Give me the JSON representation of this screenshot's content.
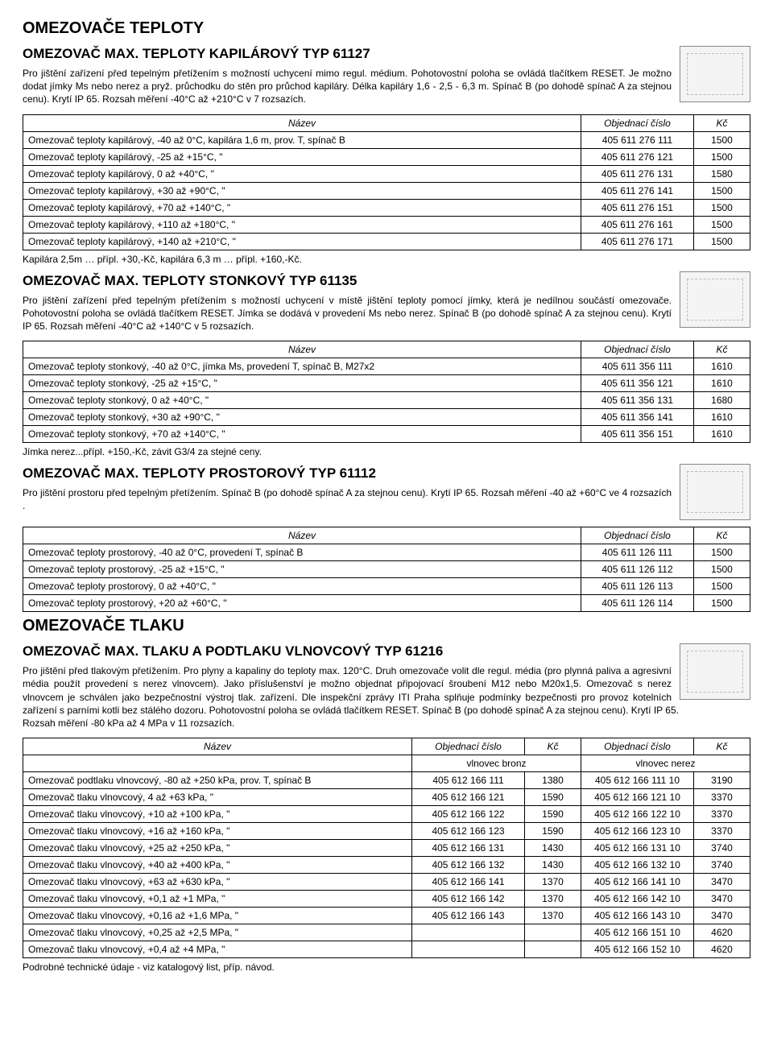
{
  "main_title": "OMEZOVAČE TEPLOTY",
  "s1": {
    "title": "OMEZOVAČ MAX. TEPLOTY KAPILÁROVÝ TYP 61127",
    "intro": "Pro jištění zařízení před tepelným přetížením s možností uchycení mimo regul. médium. Pohotovostní poloha se ovládá tlačítkem RESET. Je možno dodat jímky Ms nebo nerez a pryž. průchodku do stěn pro průchod kapiláry. Délka kapiláry 1,6 - 2,5 - 6,3 m. Spínač B (po dohodě spínač A za stejnou cenu). Krytí IP 65. Rozsah měření -40°C až +210°C v 7 rozsazích.",
    "cols": [
      "Název",
      "Objednací číslo",
      "Kč"
    ],
    "rows": [
      [
        "Omezovač teploty kapilárový, -40 až 0°C, kapilára 1,6 m, prov. T, spínač B",
        "405 611 276 111",
        "1500"
      ],
      [
        "Omezovač teploty kapilárový, -25 až +15°C,                    \"",
        "405 611 276 121",
        "1500"
      ],
      [
        "Omezovač teploty kapilárový, 0 až +40°C,                       \"",
        "405 611 276 131",
        "1580"
      ],
      [
        "Omezovač teploty kapilárový, +30 až +90°C,                   \"",
        "405 611 276 141",
        "1500"
      ],
      [
        "Omezovač teploty kapilárový, +70 až +140°C,                 \"",
        "405 611 276 151",
        "1500"
      ],
      [
        "Omezovač teploty kapilárový, +110 až +180°C,               \"",
        "405 611 276 161",
        "1500"
      ],
      [
        "Omezovač teploty kapilárový, +140 až +210°C,               \"",
        "405 611 276 171",
        "1500"
      ]
    ],
    "note": "Kapilára 2,5m … přípl. +30,-Kč, kapilára 6,3 m … přípl. +160,-Kč."
  },
  "s2": {
    "title": "OMEZOVAČ MAX. TEPLOTY STONKOVÝ TYP 61135",
    "intro": "Pro jištění zařízení před tepelným přetížením s možností uchycení v místě jištění teploty pomocí jímky, která je nedílnou součástí omezovače. Pohotovostní poloha se ovládá tlačítkem RESET. Jímka se dodává v provedení Ms nebo nerez. Spínač B (po dohodě spínač A za stejnou cenu). Krytí IP 65. Rozsah měření -40°C až +140°C v 5 rozsazích.",
    "cols": [
      "Název",
      "Objednací číslo",
      "Kč"
    ],
    "rows": [
      [
        "Omezovač teploty stonkový, -40 až 0°C, jímka Ms, provedení T, spínač B, M27x2",
        "405 611 356 111",
        "1610"
      ],
      [
        "Omezovač teploty stonkový, -25 až +15°C,                    \"",
        "405 611 356 121",
        "1610"
      ],
      [
        "Omezovač teploty stonkový, 0 až +40°C,                       \"",
        "405 611 356 131",
        "1680"
      ],
      [
        "Omezovač teploty stonkový, +30 až +90°C,                   \"",
        "405 611 356 141",
        "1610"
      ],
      [
        "Omezovač teploty stonkový, +70 až +140°C,                 \"",
        "405 611 356 151",
        "1610"
      ]
    ],
    "note": "Jímka nerez...přípl. +150,-Kč, závit G3/4 za stejné ceny."
  },
  "s3": {
    "title": "OMEZOVAČ MAX. TEPLOTY PROSTOROVÝ TYP 61112",
    "intro": "Pro jištění prostoru před tepelným přetížením. Spínač B (po dohodě spínač A za stejnou cenu). Krytí IP 65. Rozsah měření  -40 až +60°C ve 4 rozsazích .",
    "cols": [
      "Název",
      "Objednací číslo",
      "Kč"
    ],
    "rows": [
      [
        "Omezovač teploty prostorový, -40 až 0°C, provedení T, spínač B",
        "405 611 126 111",
        "1500"
      ],
      [
        "Omezovač teploty prostorový, -25 až +15°C,             \"",
        "405 611 126 112",
        "1500"
      ],
      [
        "Omezovač teploty prostorový, 0 až +40°C,                \"",
        "405 611 126 113",
        "1500"
      ],
      [
        "Omezovač teploty prostorový, +20 až +60°C,            \"",
        "405 611 126 114",
        "1500"
      ]
    ]
  },
  "main_title2": "OMEZOVAČE TLAKU",
  "s4": {
    "title": "OMEZOVAČ MAX. TLAKU A PODTLAKU VLNOVCOVÝ TYP 61216",
    "intro": "Pro jištění před tlakovým přetížením. Pro plyny a kapaliny do teploty max. 120°C. Druh omezovače volit dle regul. média (pro plynná paliva a agresivní média použít provedení s nerez vlnovcem). Jako příslušenství je možno objednat připojovací šroubení M12 nebo M20x1,5. Omezovač s nerez vlnovcem je schválen jako bezpečnostní výstroj tlak. zařízení. Dle inspekční zprávy ITI Praha splňuje podmínky bezpečnosti pro provoz kotelních zařízení s parními kotli bez stálého dozoru. Pohotovostní poloha se ovládá tlačítkem RESET. Spínač B (po dohodě spínač A za stejnou cenu). Krytí IP 65. Rozsah měření -80 kPa až 4 MPa v 11 rozsazích.",
    "cols": [
      "Název",
      "Objednací číslo",
      "Kč",
      "Objednací číslo",
      "Kč"
    ],
    "sub": [
      "",
      "vlnovec bronz",
      "",
      "vlnovec nerez",
      ""
    ],
    "rows": [
      [
        "Omezovač podtlaku vlnovcový, -80 až +250 kPa, prov. T, spínač B",
        "405 612 166 111",
        "1380",
        "405 612 166 111 10",
        "3190"
      ],
      [
        "Omezovač tlaku vlnovcový, 4 až +63 kPa,                    \"",
        "405 612 166 121",
        "1590",
        "405 612 166 121 10",
        "3370"
      ],
      [
        "Omezovač tlaku vlnovcový, +10 až +100 kPa,              \"",
        "405 612 166 122",
        "1590",
        "405 612 166 122 10",
        "3370"
      ],
      [
        "Omezovač tlaku vlnovcový, +16 až +160 kPa,              \"",
        "405 612 166 123",
        "1590",
        "405 612 166 123 10",
        "3370"
      ],
      [
        "Omezovač tlaku vlnovcový, +25 až +250 kPa,              \"",
        "405 612 166 131",
        "1430",
        "405 612 166 131 10",
        "3740"
      ],
      [
        "Omezovač tlaku vlnovcový, +40 až +400 kPa,              \"",
        "405 612 166 132",
        "1430",
        "405 612 166 132 10",
        "3740"
      ],
      [
        "Omezovač tlaku vlnovcový, +63 až +630 kPa,              \"",
        "405 612 166 141",
        "1370",
        "405 612 166 141 10",
        "3470"
      ],
      [
        "Omezovač tlaku vlnovcový, +0,1 až +1 MPa,                \"",
        "405 612 166 142",
        "1370",
        "405 612 166 142 10",
        "3470"
      ],
      [
        "Omezovač tlaku vlnovcový, +0,16 až +1,6 MPa,           \"",
        "405 612 166 143",
        "1370",
        "405 612 166 143 10",
        "3470"
      ],
      [
        "Omezovač tlaku vlnovcový, +0,25 až +2,5 MPa,           \"",
        "",
        "",
        "405 612 166 151 10",
        "4620"
      ],
      [
        "Omezovač tlaku vlnovcový, +0,4 až +4 MPa,               \"",
        "",
        "",
        "405 612 166 152 10",
        "4620"
      ]
    ]
  },
  "footer": "Podrobné technické údaje - viz katalogový list, příp. návod."
}
